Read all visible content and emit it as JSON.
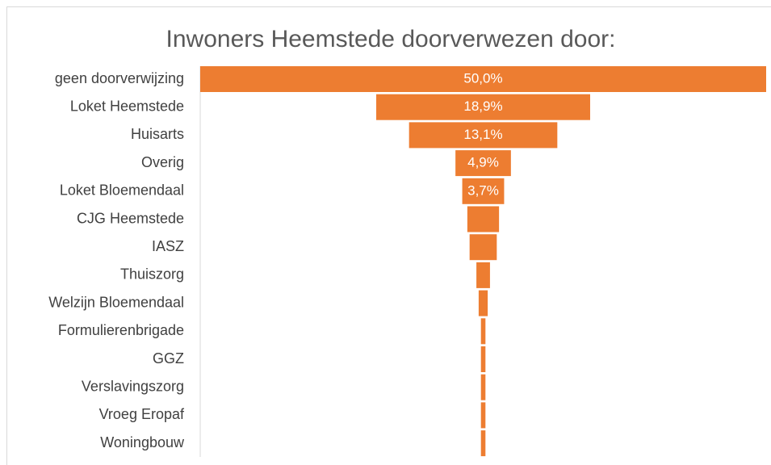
{
  "chart_data": {
    "type": "funnel",
    "title": "Inwoners Heemstede doorverwezen door:",
    "categories": [
      "geen doorverwijzing",
      "Loket Heemstede",
      "Huisarts",
      "Overig",
      "Loket Bloemendaal",
      "CJG Heemstede",
      "IASZ",
      "Thuiszorg",
      "Welzijn Bloemendaal",
      "Formulierenbrigade",
      "GGZ",
      "Verslavingszorg",
      "Vroeg Eropaf",
      "Woningbouw"
    ],
    "values": [
      50.0,
      18.9,
      13.1,
      4.9,
      3.7,
      2.8,
      2.4,
      1.2,
      0.8,
      0.4,
      0.4,
      0.4,
      0.4,
      0.4
    ],
    "value_labels": [
      "50,0%",
      "18,9%",
      "13,1%",
      "4,9%",
      "3,7%",
      null,
      null,
      null,
      null,
      null,
      null,
      null,
      null,
      null
    ],
    "color": "#ed7d31"
  }
}
